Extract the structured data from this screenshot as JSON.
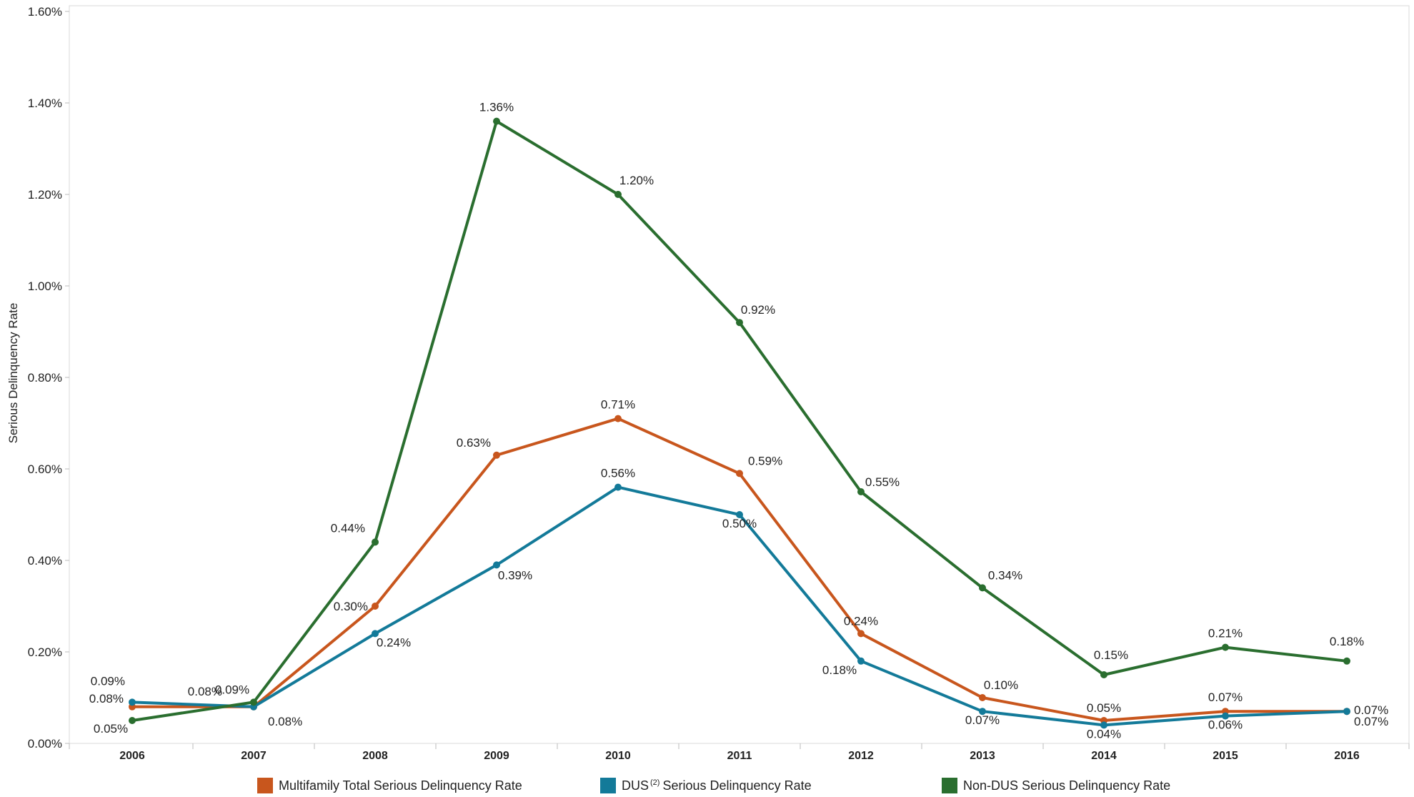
{
  "chart_data": {
    "type": "line",
    "title": "",
    "xlabel": "",
    "ylabel": "Serious Delinquency Rate",
    "categories": [
      "2006",
      "2007",
      "2008",
      "2009",
      "2010",
      "2011",
      "2012",
      "2013",
      "2014",
      "2015",
      "2016"
    ],
    "ylim": [
      0,
      1.6
    ],
    "y_ticks": [
      0,
      0.2,
      0.4,
      0.6,
      0.8,
      1.0,
      1.2,
      1.4,
      1.6
    ],
    "y_tick_labels": [
      "0.00%",
      "0.20%",
      "0.40%",
      "0.60%",
      "0.80%",
      "1.00%",
      "1.20%",
      "1.40%",
      "1.60%"
    ],
    "grid": false,
    "legend_position": "bottom",
    "series": [
      {
        "name": "Multifamily Total Serious Delinquency Rate",
        "color": "#C8561D",
        "values": [
          0.08,
          0.08,
          0.3,
          0.63,
          0.71,
          0.59,
          0.24,
          0.1,
          0.05,
          0.07,
          0.07
        ],
        "labels": [
          "0.08%",
          "0.08%",
          "0.30%",
          "0.63%",
          "0.71%",
          "0.59%",
          "0.24%",
          "0.10%",
          "0.05%",
          "0.07%",
          "0.07%"
        ]
      },
      {
        "name": "DUS Serious Delinquency Rate",
        "legend_label": "DUS",
        "legend_sup": "(2)",
        "legend_suffix": "Serious Delinquency Rate",
        "color": "#137A99",
        "values": [
          0.09,
          0.08,
          0.24,
          0.39,
          0.56,
          0.5,
          0.18,
          0.07,
          0.04,
          0.06,
          0.07
        ],
        "labels": [
          "0.09%",
          "0.08%",
          "0.24%",
          "0.39%",
          "0.56%",
          "0.50%",
          "0.18%",
          "0.07%",
          "0.04%",
          "0.06%",
          "0.07%"
        ]
      },
      {
        "name": "Non-DUS Serious Delinquency Rate",
        "color": "#2A6E2F",
        "values": [
          0.05,
          0.09,
          0.44,
          1.36,
          1.2,
          0.92,
          0.55,
          0.34,
          0.15,
          0.21,
          0.18
        ],
        "labels": [
          "0.05%",
          "0.09%",
          "0.44%",
          "1.36%",
          "1.20%",
          "0.92%",
          "0.55%",
          "0.34%",
          "0.15%",
          "0.21%",
          "0.18%"
        ]
      }
    ]
  },
  "legend": {
    "item1_label": "Multifamily Total Serious Delinquency Rate",
    "item2_label": "DUS",
    "item2_sup": "(2)",
    "item2_suffix": "Serious Delinquency Rate",
    "item3_label": "Non-DUS Serious Delinquency Rate"
  }
}
